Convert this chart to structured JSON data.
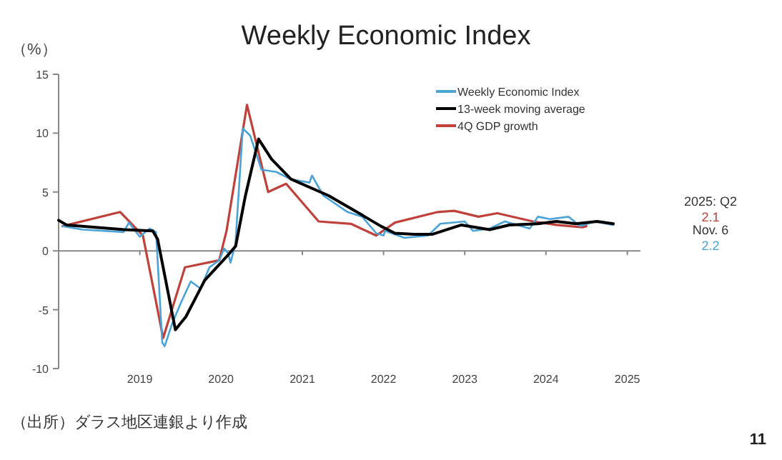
{
  "chart_data": {
    "type": "line",
    "title": "Weekly Economic Index",
    "ylabel": "（%）",
    "xlim": [
      "2018-01-01",
      "2025-03-01"
    ],
    "xticks": [
      "2019",
      "2020",
      "2021",
      "2022",
      "2023",
      "2024",
      "2025"
    ],
    "ylim": [
      -10,
      15
    ],
    "yticks": [
      -10,
      -5,
      0,
      5,
      10,
      15
    ],
    "legend": "top right",
    "marker": "none",
    "line_style": "solid",
    "series": [
      {
        "name": "Weekly Economic Index",
        "color": "#4aa3d6",
        "x": [
          "2018-01-19",
          "2018-04-20",
          "2018-10-20",
          "2018-11-13",
          "2019-01-01",
          "2019-02-14",
          "2019-03-15",
          "2019-04-12",
          "2019-04-23",
          "2019-05-26",
          "2019-07-05",
          "2019-08-18",
          "2019-10-01",
          "2019-11-10",
          "2019-12-24",
          "2020-01-15",
          "2020-02-02",
          "2020-02-13",
          "2020-03-06",
          "2020-04-08",
          "2020-05-11",
          "2020-07-01",
          "2020-09-06",
          "2020-11-07",
          "2021-02-02",
          "2021-02-13",
          "2021-04-05",
          "2021-07-23",
          "2021-09-27",
          "2021-11-29",
          "2022-01-01",
          "2022-01-08",
          "2022-04-05",
          "2022-07-20",
          "2022-09-13",
          "2023-01-01",
          "2023-02-07",
          "2023-04-23",
          "2023-07-01",
          "2023-10-20",
          "2023-11-26",
          "2024-01-19",
          "2024-04-12",
          "2024-06-03",
          "2024-08-07",
          "2024-10-30"
        ],
        "values": [
          2.1,
          1.8,
          1.6,
          2.4,
          1.2,
          1.9,
          1.6,
          -7.8,
          -8.1,
          -6.2,
          -4.4,
          -2.6,
          -3.2,
          -1.4,
          -0.8,
          0.2,
          -0.2,
          -1.0,
          0.6,
          10.4,
          9.8,
          6.9,
          6.7,
          6.1,
          5.8,
          6.4,
          4.7,
          3.3,
          2.9,
          1.5,
          1.3,
          1.7,
          1.1,
          1.3,
          2.3,
          2.5,
          1.7,
          1.9,
          2.5,
          1.9,
          2.9,
          2.7,
          2.9,
          2.1,
          2.5,
          2.2
        ]
      },
      {
        "name": "13-week moving average",
        "color": "#000000",
        "x": [
          "2018-01-01",
          "2018-02-06",
          "2018-10-23",
          "2019-02-28",
          "2019-03-22",
          "2019-06-10",
          "2019-07-27",
          "2019-10-20",
          "2020-01-26",
          "2020-03-07",
          "2020-04-20",
          "2020-06-18",
          "2020-08-15",
          "2020-11-10",
          "2021-04-28",
          "2021-09-03",
          "2021-12-20",
          "2022-02-21",
          "2022-05-19",
          "2022-08-07",
          "2022-12-17",
          "2023-04-23",
          "2023-07-20",
          "2023-11-26",
          "2024-02-17",
          "2024-05-15",
          "2024-08-18",
          "2024-10-30"
        ],
        "values": [
          2.6,
          2.2,
          1.8,
          1.7,
          1.0,
          -6.7,
          -5.6,
          -2.5,
          -0.5,
          0.4,
          4.7,
          9.5,
          7.8,
          6.1,
          4.7,
          3.3,
          2.1,
          1.5,
          1.4,
          1.4,
          2.2,
          1.8,
          2.2,
          2.3,
          2.5,
          2.3,
          2.5,
          2.3
        ]
      },
      {
        "name": "4Q GDP growth",
        "color": "#c0403a",
        "x": [
          "2018-01-19",
          "2018-10-05",
          "2019-01-15",
          "2019-04-16",
          "2019-07-23",
          "2019-12-24",
          "2020-01-26",
          "2020-04-27",
          "2020-07-31",
          "2020-10-20",
          "2021-03-15",
          "2021-08-07",
          "2021-11-29",
          "2022-02-21",
          "2022-09-02",
          "2022-11-14",
          "2023-03-04",
          "2023-05-27",
          "2023-11-03",
          "2024-02-17",
          "2024-06-13",
          "2024-07-01"
        ],
        "values": [
          2.1,
          3.3,
          1.3,
          -7.4,
          -1.4,
          -0.8,
          1.7,
          12.4,
          5.0,
          5.7,
          2.5,
          2.3,
          1.3,
          2.4,
          3.3,
          3.4,
          2.9,
          3.2,
          2.5,
          2.2,
          2.0,
          2.1
        ]
      }
    ],
    "annotations": [
      "2025: Q2",
      "2.1",
      "Nov. 6",
      "2.2",
      "（出所）ダラス地区連銀より作成",
      "11"
    ]
  }
}
